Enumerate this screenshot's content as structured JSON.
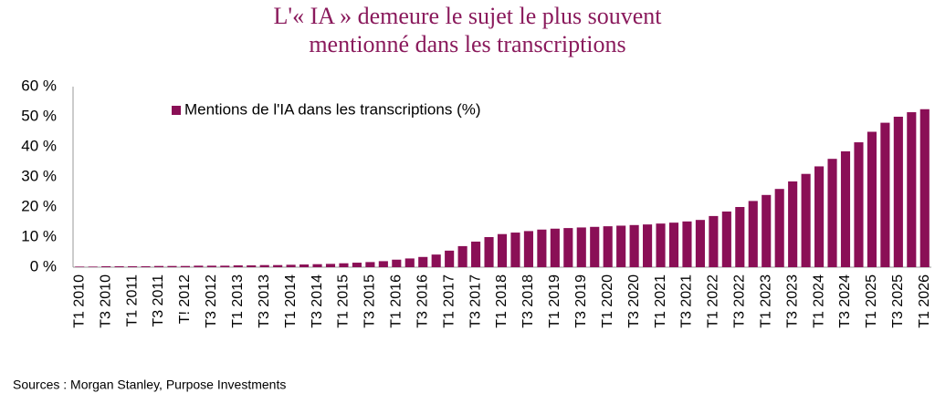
{
  "chart_data": {
    "type": "bar",
    "title": [
      "L'« IA » demeure le sujet le plus souvent",
      "mentionné dans les transcriptions"
    ],
    "categories": [
      "T1 2010",
      null,
      "T3 2010",
      null,
      "T1 2011",
      null,
      "T3 2011",
      null,
      "T! 2012",
      null,
      "T3 2012",
      null,
      "T1 2013",
      null,
      "T3 2013",
      null,
      "T1 2014",
      null,
      "T3 2014",
      null,
      "T1 2015",
      null,
      "T3 2015",
      null,
      "T1 2016",
      null,
      "T3 2016",
      null,
      "T1 2017",
      null,
      "T3 2017",
      null,
      "T1 2018",
      null,
      "T3 2018",
      null,
      "T1 2019",
      null,
      "T3 2019",
      null,
      "T1 2020",
      null,
      "T3 2020",
      null,
      "T1 2021",
      null,
      "T3 2021",
      null,
      "T1 2022",
      null,
      "T3 2022",
      null,
      "T1 2023",
      null,
      "T3 2023",
      null,
      "T1 2024",
      null,
      "T3 2024",
      null,
      "T1 2025",
      null,
      "T3 2025",
      null,
      "T1 2026"
    ],
    "series": [
      {
        "name": "Mentions de l'IA dans les transcriptions (%)",
        "color": "#8a0f56",
        "values": [
          0.2,
          0.2,
          0.3,
          0.3,
          0.3,
          0.3,
          0.4,
          0.4,
          0.4,
          0.5,
          0.5,
          0.5,
          0.6,
          0.6,
          0.7,
          0.7,
          0.8,
          0.9,
          1.0,
          1.1,
          1.3,
          1.5,
          1.7,
          2.0,
          2.5,
          2.9,
          3.4,
          4.2,
          5.5,
          7,
          8.5,
          10,
          11,
          11.5,
          12,
          12.5,
          12.8,
          13,
          13.2,
          13.4,
          13.6,
          13.8,
          14,
          14.2,
          14.5,
          14.8,
          15.2,
          15.7,
          17,
          18.5,
          20,
          22,
          24,
          26,
          28.5,
          31,
          33.5,
          36,
          38.5,
          41.5,
          45,
          48,
          50,
          51.5,
          52.5
        ]
      }
    ],
    "ylim": [
      0,
      60
    ],
    "yticks": [
      {
        "value": 0,
        "label": "0 %"
      },
      {
        "value": 10,
        "label": "10 %"
      },
      {
        "value": 20,
        "label": "20 %"
      },
      {
        "value": 30,
        "label": "30 %"
      },
      {
        "value": 40,
        "label": "40 %"
      },
      {
        "value": 50,
        "label": "50 %"
      },
      {
        "value": 60,
        "label": "60 %"
      }
    ],
    "grid": false,
    "legend": "top-left",
    "source": "Sources : Morgan Stanley, Purpose Investments"
  }
}
